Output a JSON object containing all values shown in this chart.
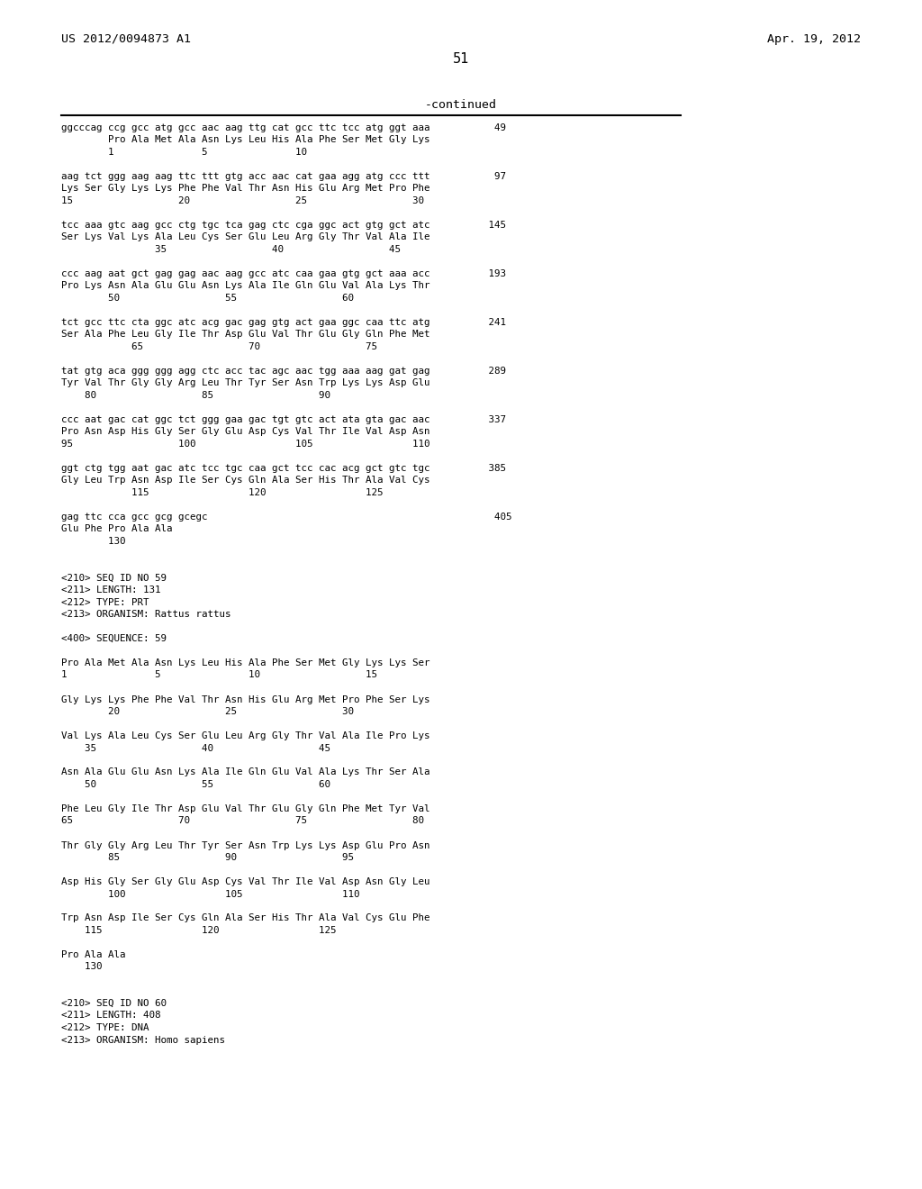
{
  "header_left": "US 2012/0094873 A1",
  "header_right": "Apr. 19, 2012",
  "page_number": "51",
  "continued_label": "-continued",
  "background_color": "#ffffff",
  "text_color": "#000000",
  "font_family": "monospace",
  "content_lines": [
    "ggcccag ccg gcc atg gcc aac aag ttg cat gcc ttc tcc atg ggt aaa           49",
    "        Pro Ala Met Ala Asn Lys Leu His Ala Phe Ser Met Gly Lys",
    "        1               5               10",
    "",
    "aag tct ggg aag aag ttc ttt gtg acc aac cat gaa agg atg ccc ttt           97",
    "Lys Ser Gly Lys Lys Phe Phe Val Thr Asn His Glu Arg Met Pro Phe",
    "15                  20                  25                  30",
    "",
    "tcc aaa gtc aag gcc ctg tgc tca gag ctc cga ggc act gtg gct atc          145",
    "Ser Lys Val Lys Ala Leu Cys Ser Glu Leu Arg Gly Thr Val Ala Ile",
    "                35                  40                  45",
    "",
    "ccc aag aat gct gag gag aac aag gcc atc caa gaa gtg gct aaa acc          193",
    "Pro Lys Asn Ala Glu Glu Asn Lys Ala Ile Gln Glu Val Ala Lys Thr",
    "        50                  55                  60",
    "",
    "tct gcc ttc cta ggc atc acg gac gag gtg act gaa ggc caa ttc atg          241",
    "Ser Ala Phe Leu Gly Ile Thr Asp Glu Val Thr Glu Gly Gln Phe Met",
    "            65                  70                  75",
    "",
    "tat gtg aca ggg ggg agg ctc acc tac agc aac tgg aaa aag gat gag          289",
    "Tyr Val Thr Gly Gly Arg Leu Thr Tyr Ser Asn Trp Lys Lys Asp Glu",
    "    80                  85                  90",
    "",
    "ccc aat gac cat ggc tct ggg gaa gac tgt gtc act ata gta gac aac          337",
    "Pro Asn Asp His Gly Ser Gly Glu Asp Cys Val Thr Ile Val Asp Asn",
    "95                  100                 105                 110",
    "",
    "ggt ctg tgg aat gac atc tcc tgc caa gct tcc cac acg gct gtc tgc          385",
    "Gly Leu Trp Asn Asp Ile Ser Cys Gln Ala Ser His Thr Ala Val Cys",
    "            115                 120                 125",
    "",
    "gag ttc cca gcc gcg gcegc                                                 405",
    "Glu Phe Pro Ala Ala",
    "        130",
    "",
    "",
    "<210> SEQ ID NO 59",
    "<211> LENGTH: 131",
    "<212> TYPE: PRT",
    "<213> ORGANISM: Rattus rattus",
    "",
    "<400> SEQUENCE: 59",
    "",
    "Pro Ala Met Ala Asn Lys Leu His Ala Phe Ser Met Gly Lys Lys Ser",
    "1               5               10                  15",
    "",
    "Gly Lys Lys Phe Phe Val Thr Asn His Glu Arg Met Pro Phe Ser Lys",
    "        20                  25                  30",
    "",
    "Val Lys Ala Leu Cys Ser Glu Leu Arg Gly Thr Val Ala Ile Pro Lys",
    "    35                  40                  45",
    "",
    "Asn Ala Glu Glu Asn Lys Ala Ile Gln Glu Val Ala Lys Thr Ser Ala",
    "    50                  55                  60",
    "",
    "Phe Leu Gly Ile Thr Asp Glu Val Thr Glu Gly Gln Phe Met Tyr Val",
    "65                  70                  75                  80",
    "",
    "Thr Gly Gly Arg Leu Thr Tyr Ser Asn Trp Lys Lys Asp Glu Pro Asn",
    "        85                  90                  95",
    "",
    "Asp His Gly Ser Gly Glu Asp Cys Val Thr Ile Val Asp Asn Gly Leu",
    "        100                 105                 110",
    "",
    "Trp Asn Asp Ile Ser Cys Gln Ala Ser His Thr Ala Val Cys Glu Phe",
    "    115                 120                 125",
    "",
    "Pro Ala Ala",
    "    130",
    "",
    "",
    "<210> SEQ ID NO 60",
    "<211> LENGTH: 408",
    "<212> TYPE: DNA",
    "<213> ORGANISM: Homo sapiens"
  ]
}
